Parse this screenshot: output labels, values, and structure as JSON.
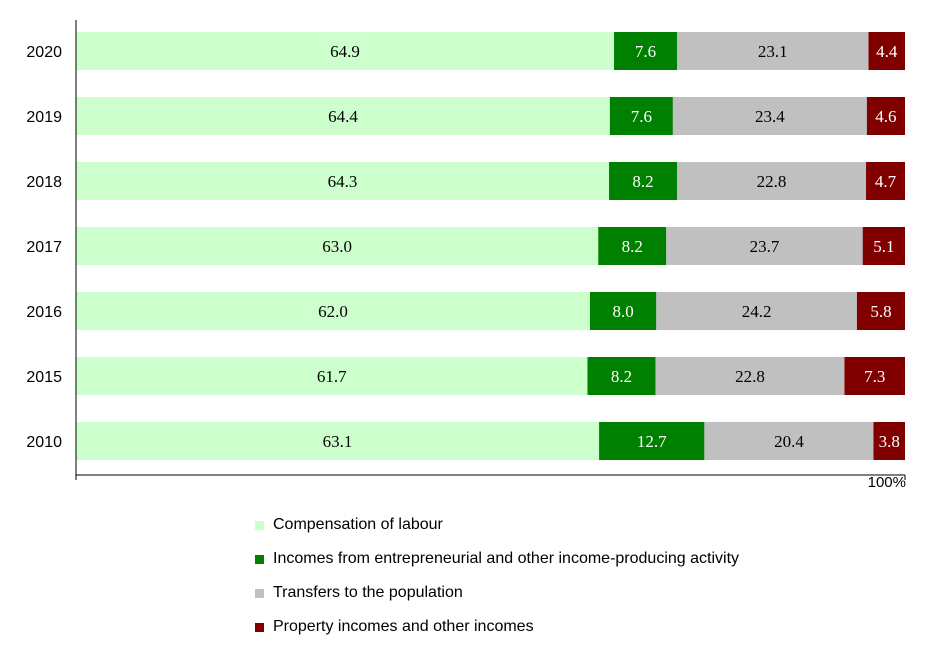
{
  "chart_data": {
    "type": "bar",
    "orientation": "horizontal",
    "stacked": "percent",
    "categories": [
      "2020",
      "2019",
      "2018",
      "2017",
      "2016",
      "2015",
      "2010"
    ],
    "series": [
      {
        "name": "Compensation of labour",
        "color": "#ccffcc",
        "label_color": "#000000",
        "values": [
          64.9,
          64.4,
          64.3,
          63.0,
          62.0,
          61.7,
          63.1
        ]
      },
      {
        "name": "Incomes from entrepreneurial and other income-producing activity",
        "color": "#008000",
        "label_color": "#ffffff",
        "values": [
          7.6,
          7.6,
          8.2,
          8.2,
          8.0,
          8.2,
          12.7
        ]
      },
      {
        "name": "Transfers to the population",
        "color": "#c0c0c0",
        "label_color": "#000000",
        "values": [
          23.1,
          23.4,
          22.8,
          23.7,
          24.2,
          22.8,
          20.4
        ]
      },
      {
        "name": "Property incomes and other incomes",
        "color": "#800000",
        "label_color": "#ffffff",
        "values": [
          4.4,
          4.6,
          4.7,
          5.1,
          5.8,
          7.3,
          3.8
        ]
      }
    ],
    "value_labels": [
      [
        "64.9",
        "64.4",
        "64.3",
        "63.0",
        "62.0",
        "61.7",
        "63.1"
      ],
      [
        "7.6",
        "7.6",
        "8.2",
        "8.2",
        "8.0",
        "8.2",
        "12.7"
      ],
      [
        "23.1",
        "23.4",
        "22.8",
        "23.7",
        "24.2",
        "22.8",
        "20.4"
      ],
      [
        "4.4",
        "4.6",
        "4.7",
        "5.1",
        "5.8",
        "7.3",
        "3.8"
      ]
    ],
    "x_tick_label": "100%",
    "xlim": [
      0,
      100
    ],
    "grid": false,
    "legend_position": "bottom"
  }
}
